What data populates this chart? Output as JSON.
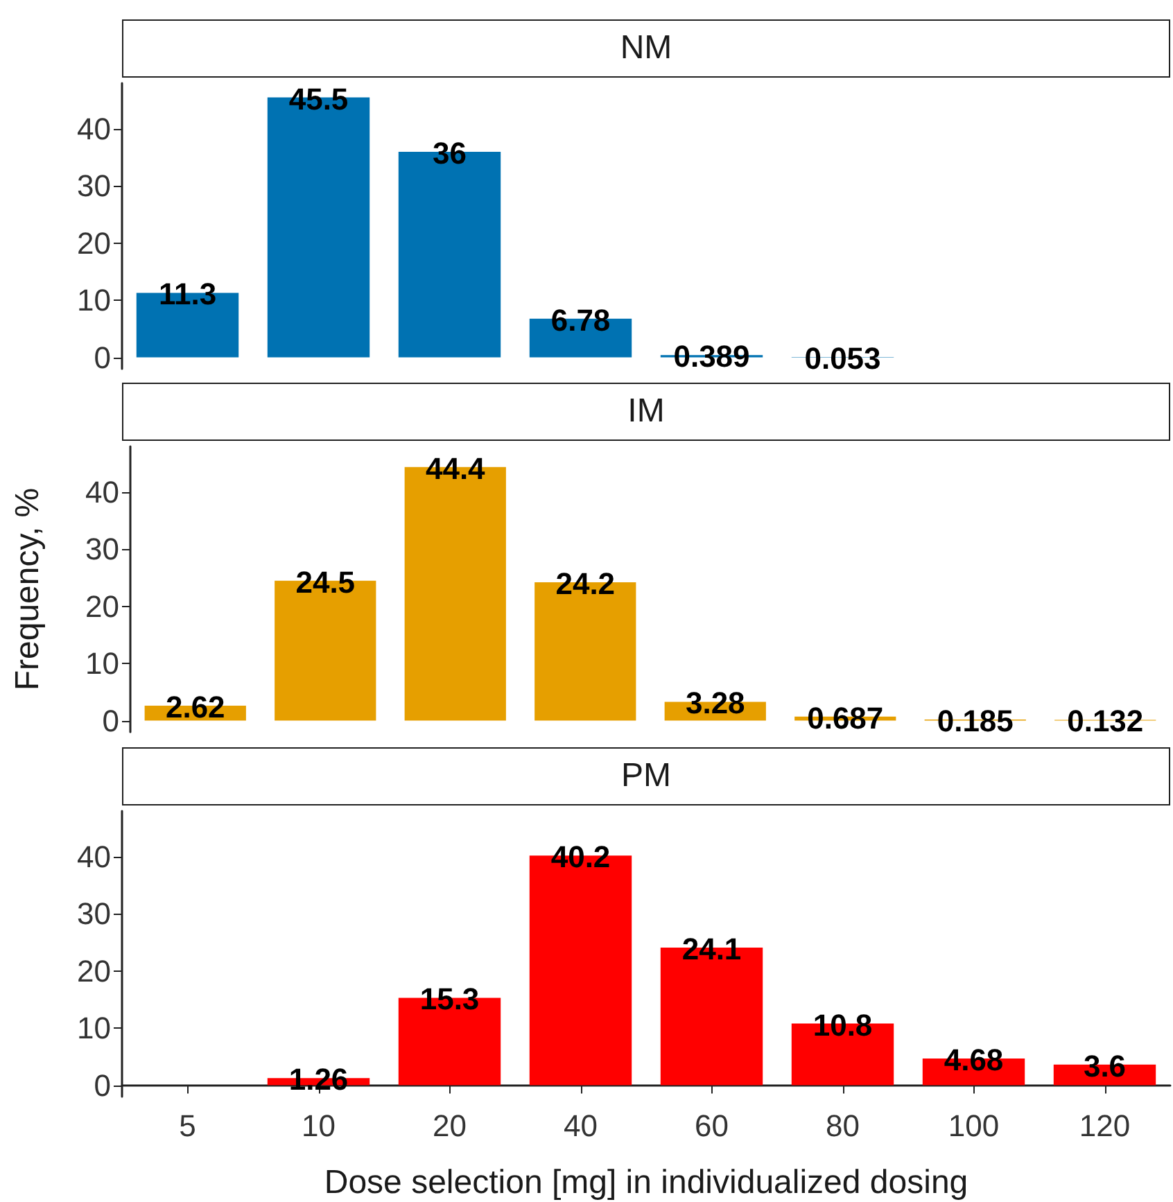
{
  "chart_data": [
    {
      "type": "bar",
      "title": "NM",
      "categories": [
        "5",
        "10",
        "20",
        "40",
        "60",
        "80",
        "100",
        "120"
      ],
      "values": [
        11.3,
        45.5,
        36,
        6.78,
        0.389,
        0.053,
        null,
        null
      ],
      "color": "#0072b2",
      "ylim": [
        -2,
        48
      ],
      "yticks": [
        0,
        10,
        20,
        30,
        40
      ],
      "data_labels": true,
      "tick_labels": "y"
    },
    {
      "type": "bar",
      "title": "IM",
      "ylabel": "Frequency, %",
      "categories": [
        "5",
        "10",
        "20",
        "40",
        "60",
        "80",
        "100",
        "120"
      ],
      "values": [
        2.62,
        24.5,
        44.4,
        24.2,
        3.28,
        0.687,
        0.185,
        0.132
      ],
      "color": "#e69f00",
      "ylim": [
        -2,
        48
      ],
      "yticks": [
        0,
        10,
        20,
        30,
        40
      ],
      "data_labels": true,
      "tick_labels": "y"
    },
    {
      "type": "bar",
      "title": "PM",
      "xlabel": "Dose selection [mg] in individualized dosing",
      "categories": [
        "5",
        "10",
        "20",
        "40",
        "60",
        "80",
        "100",
        "120"
      ],
      "values": [
        null,
        1.26,
        15.3,
        40.2,
        24.1,
        10.8,
        4.68,
        3.6
      ],
      "color": "#ff0000",
      "ylim": [
        -2,
        48
      ],
      "yticks": [
        0,
        10,
        20,
        30,
        40
      ],
      "data_labels": true
    }
  ]
}
